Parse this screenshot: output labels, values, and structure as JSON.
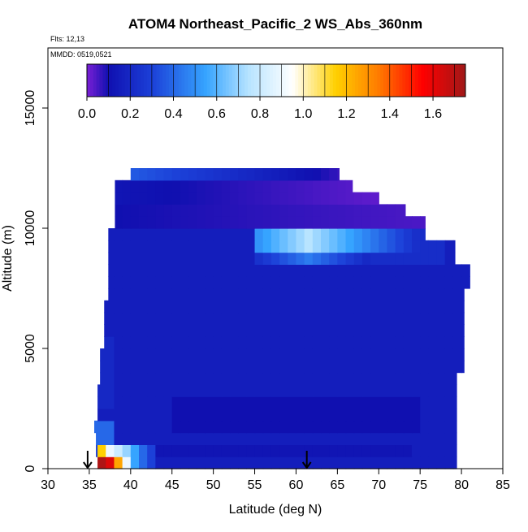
{
  "chart_data": {
    "type": "heatmap",
    "title": "ATOM4 Northeast_Pacific_2 WS_Abs_360nm",
    "flights_note": "Flts: 12,13",
    "dates_note": "MMDD: 0519,0521",
    "xlabel": "Latitude (deg N)",
    "ylabel": "Altitude (m)",
    "xlim": [
      30,
      85
    ],
    "ylim": [
      0,
      17500
    ],
    "x_ticks": [
      30,
      35,
      40,
      45,
      50,
      55,
      60,
      65,
      70,
      75,
      80,
      85
    ],
    "y_ticks": [
      0,
      5000,
      10000,
      15000
    ],
    "grid": false,
    "colorbar": {
      "range": [
        0.0,
        1.75
      ],
      "ticks": [
        0.0,
        0.2,
        0.4,
        0.6,
        0.8,
        1.0,
        1.2,
        1.4,
        1.6
      ],
      "tick_labels": [
        "0.0",
        "0.2",
        "0.4",
        "0.6",
        "0.8",
        "1.0",
        "1.2",
        "1.4",
        "1.6"
      ],
      "placement": "top-inside"
    },
    "colors": {
      "lowest": "#7b1fd6",
      "low": "#1010b0",
      "mid": "#36a4ff",
      "neutral": "#ffffff",
      "high": "#ffd000",
      "very_high": "#ff0000",
      "highest": "#a01818",
      "frame": "#000000"
    },
    "markers": [
      {
        "type": "arrow",
        "x": 34.8,
        "y": 0
      },
      {
        "type": "arrow",
        "x": 61.3,
        "y": 0
      }
    ],
    "bins": {
      "altitude_step_m": 500,
      "latitude_step_deg": 1,
      "typical_value": 0.16,
      "features": [
        {
          "name": "upper-tropospheric purple layer",
          "lat_range": [
            37,
            72
          ],
          "alt_range": [
            11000,
            12500
          ],
          "value": 0.02
        },
        {
          "name": "blue plume",
          "lat_range": [
            55,
            77
          ],
          "alt_range": [
            8500,
            9500
          ],
          "value": 0.6
        },
        {
          "name": "boundary-layer high",
          "lat_range": [
            36,
            42
          ],
          "alt_range": [
            0,
            1000
          ],
          "value": 1.6
        }
      ]
    }
  }
}
